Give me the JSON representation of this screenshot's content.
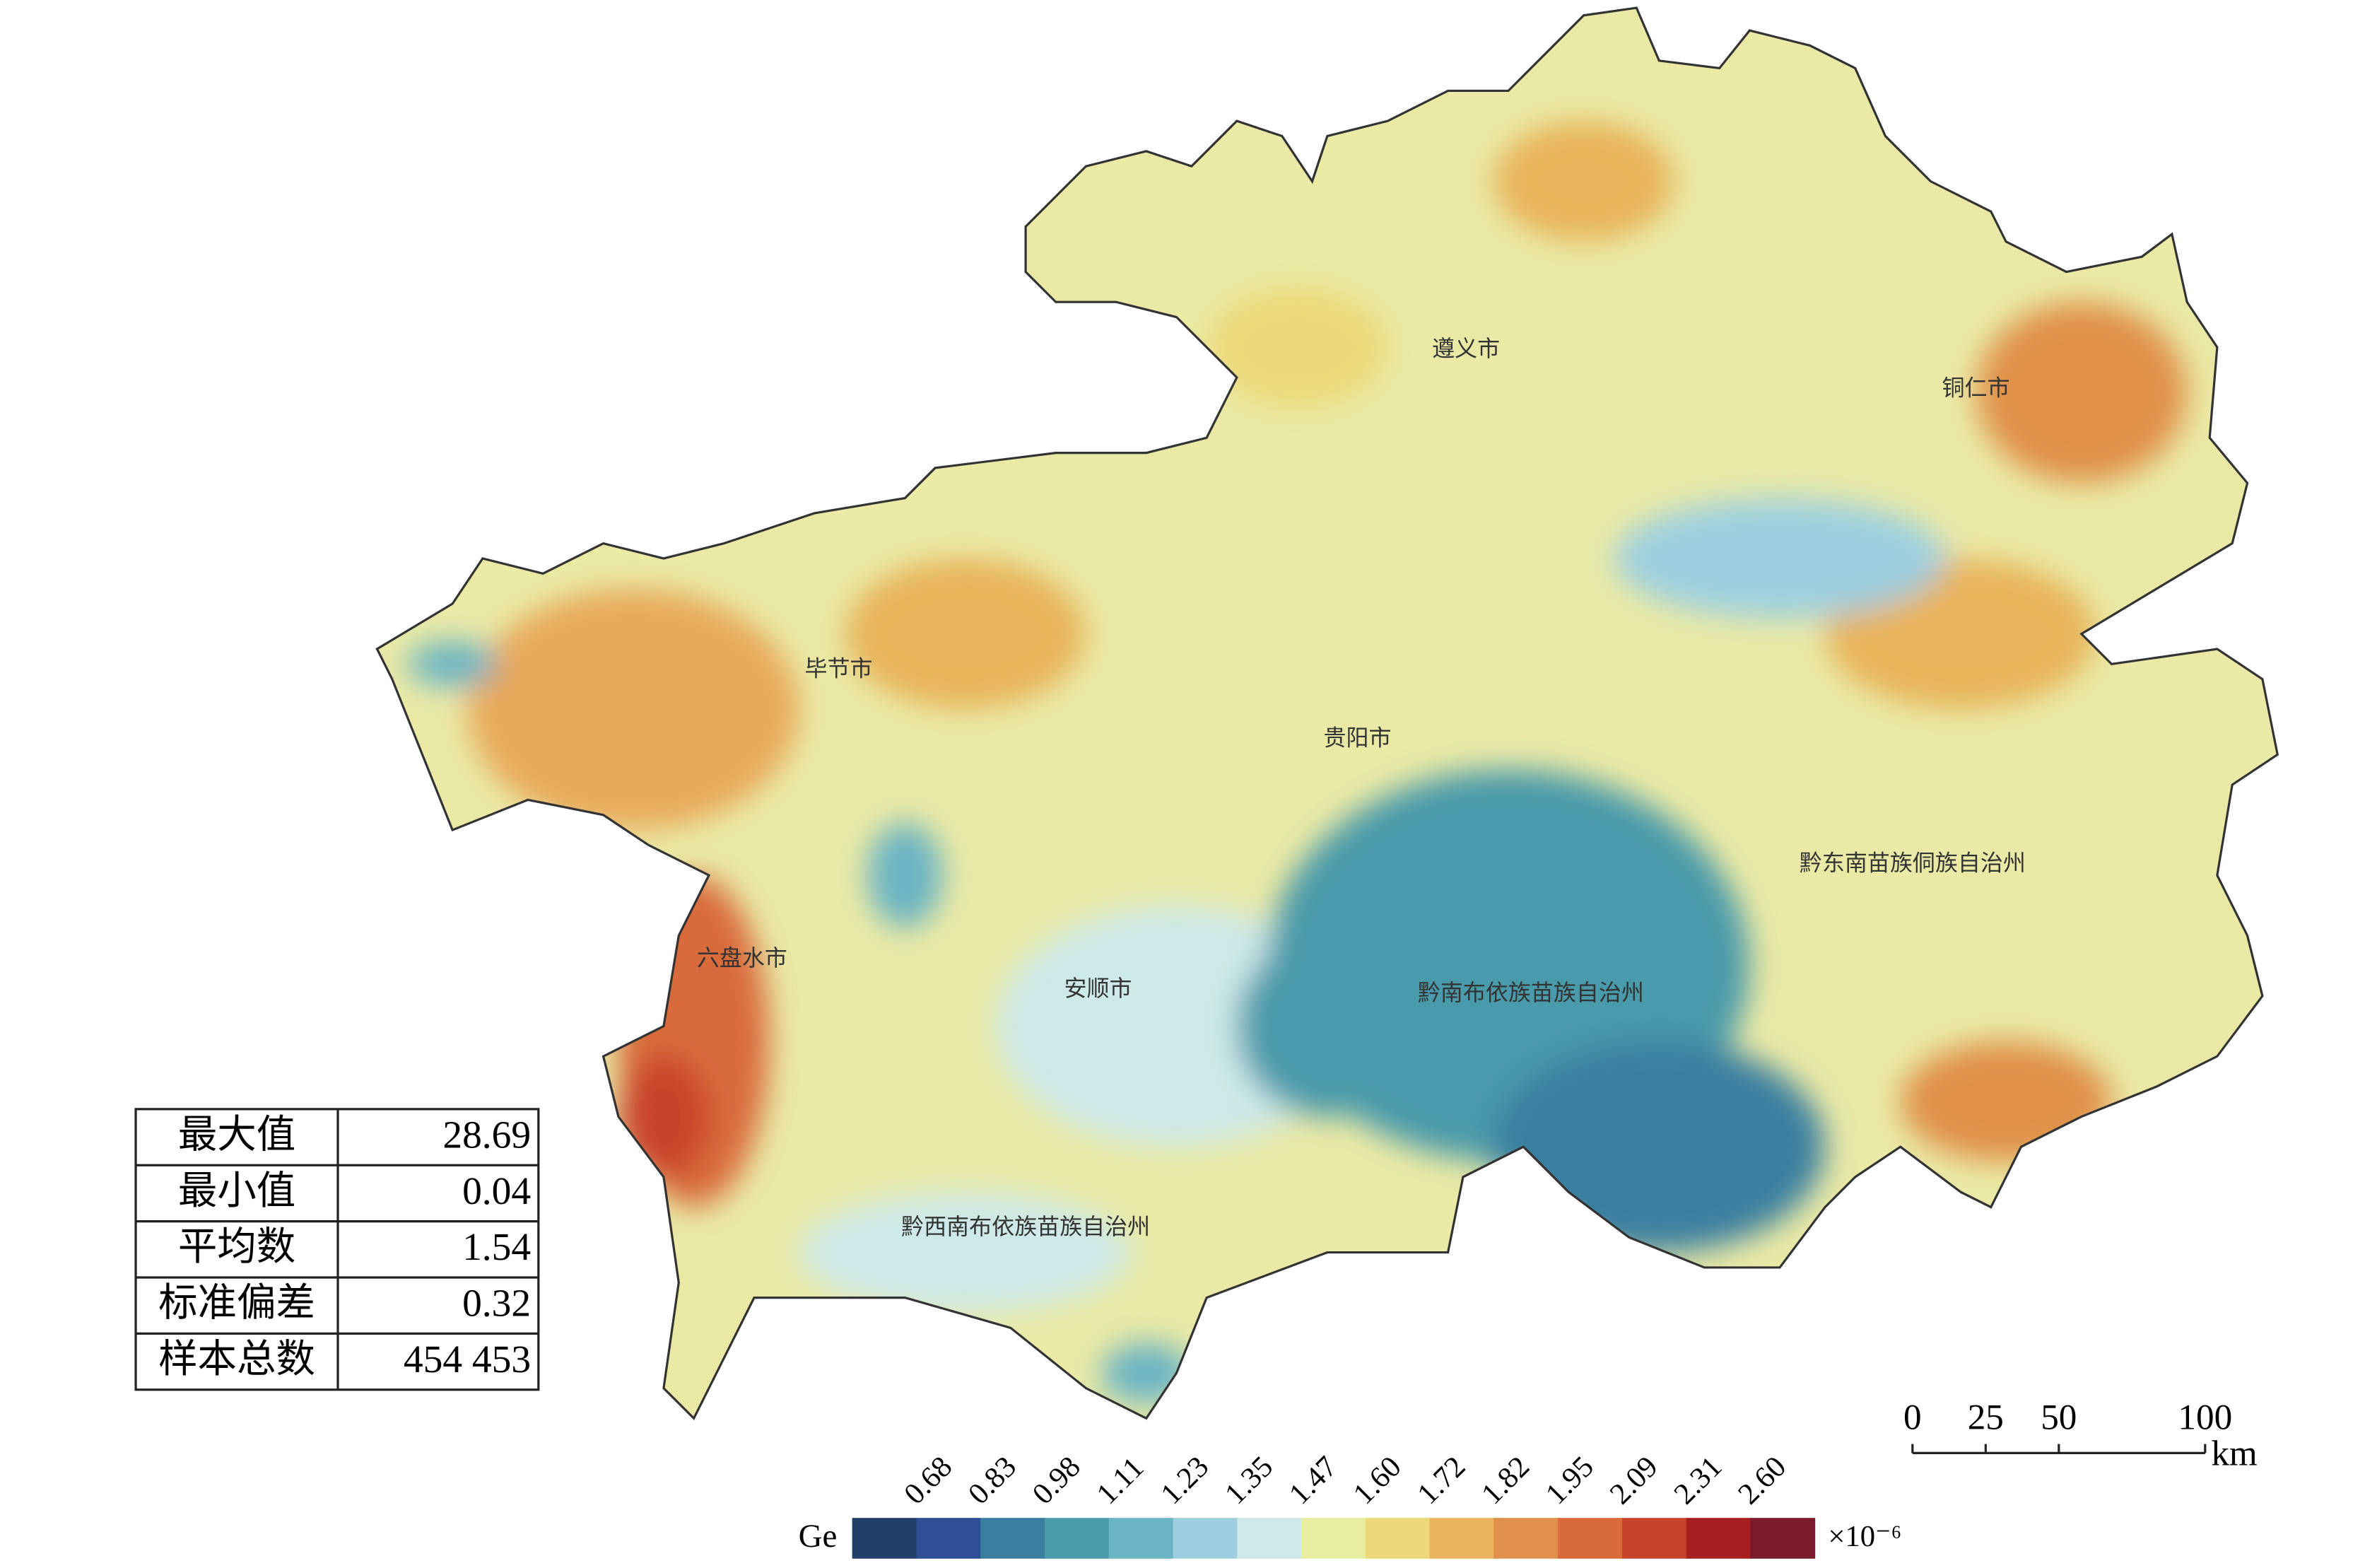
{
  "map_labels": [
    "遵义市",
    "铜仁市",
    "毕节市",
    "贵阳市",
    "六盘水市",
    "安顺市",
    "黔东南苗族侗族自治州",
    "黔南布依族苗族自治州",
    "黔西南布依族苗族自治州"
  ],
  "stats": {
    "rows": [
      [
        "最大值",
        "28.69"
      ],
      [
        "最小值",
        "0.04"
      ],
      [
        "平均数",
        "1.54"
      ],
      [
        "标准偏差",
        "0.32"
      ],
      [
        "样本总数",
        "454 453"
      ]
    ]
  },
  "legend": {
    "title": "Ge",
    "unit": "×10⁻⁶",
    "labels": [
      "0.68",
      "0.83",
      "0.98",
      "1.11",
      "1.23",
      "1.35",
      "1.47",
      "1.60",
      "1.72",
      "1.82",
      "1.95",
      "2.09",
      "2.31",
      "2.60"
    ],
    "colors": [
      "#1f3f66",
      "#2c4f95",
      "#3a7fa0",
      "#4a9aaa",
      "#6ab4c4",
      "#9dcfe0",
      "#cde9e8",
      "#e8eea0",
      "#ecd878",
      "#e8b35a",
      "#e0904a",
      "#d96b3a",
      "#c9432c",
      "#a81e1e",
      "#7a1a2a"
    ]
  },
  "scale_bar": {
    "ticks": [
      0,
      25,
      50,
      100
    ],
    "unit": "km"
  }
}
